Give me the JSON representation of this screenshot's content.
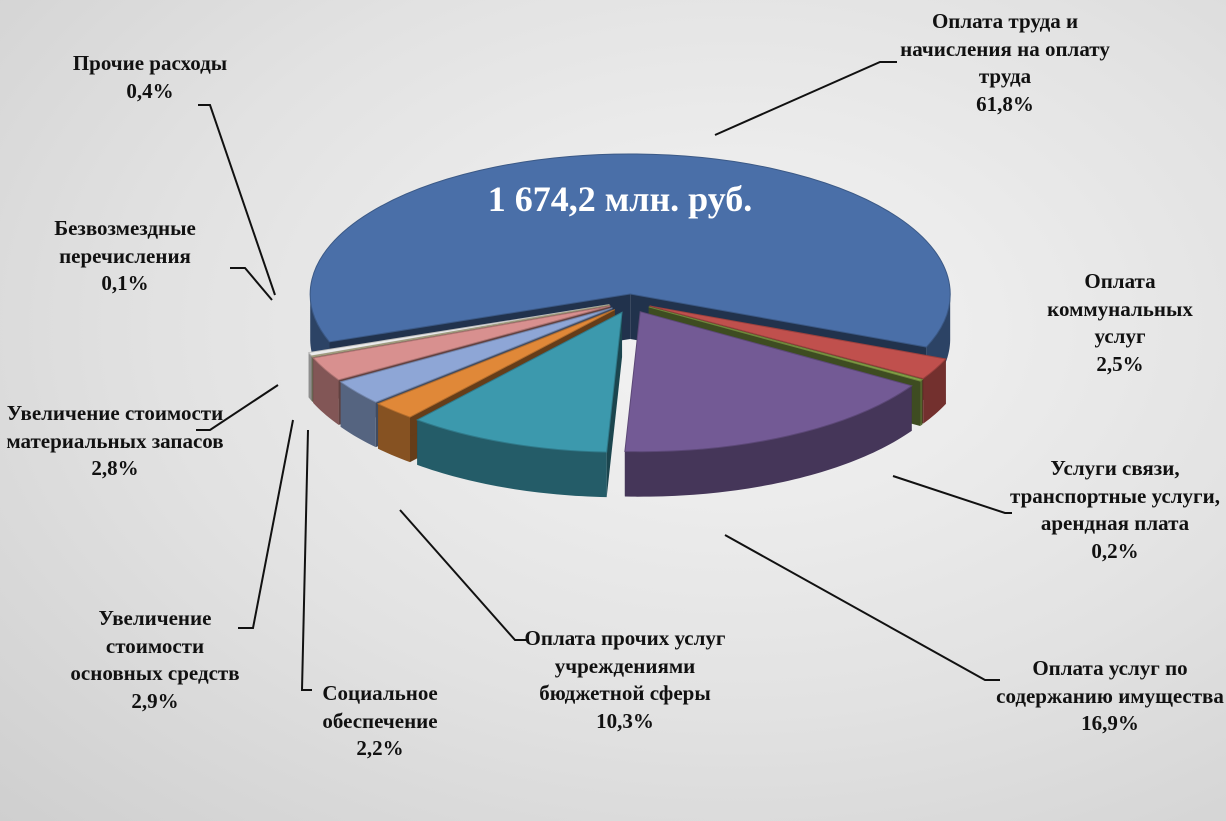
{
  "chart_data": {
    "type": "pie",
    "annotation": "1 674,2 млн. руб.",
    "categories": [
      "Оплата труда и начисления на оплату труда",
      "Оплата коммунальных услуг",
      "Услуги связи, транспортные услуги, арендная плата",
      "Оплата услуг по содержанию имущества",
      "Оплата прочих услуг учреждениями бюджетной сферы",
      "Социальное обеспечение",
      "Увеличение стоимости основных средств",
      "Увеличение стоимости материальных запасов",
      "Безвозмездные перечисления",
      "Прочие расходы"
    ],
    "values": [
      61.8,
      2.5,
      0.2,
      16.9,
      10.3,
      2.2,
      2.9,
      2.8,
      0.1,
      0.4
    ],
    "value_labels": [
      "61,8%",
      "2,5%",
      "0,2%",
      "16,9%",
      "10,3%",
      "2,2%",
      "2,9%",
      "2,8%",
      "0,1%",
      "0,4%"
    ],
    "colors": [
      "#4a6fa8",
      "#c0504d",
      "#8aa84a",
      "#735a95",
      "#3c99ad",
      "#e08838",
      "#8ea6d6",
      "#d8908f",
      "#c9c39e",
      "#ececec"
    ]
  }
}
